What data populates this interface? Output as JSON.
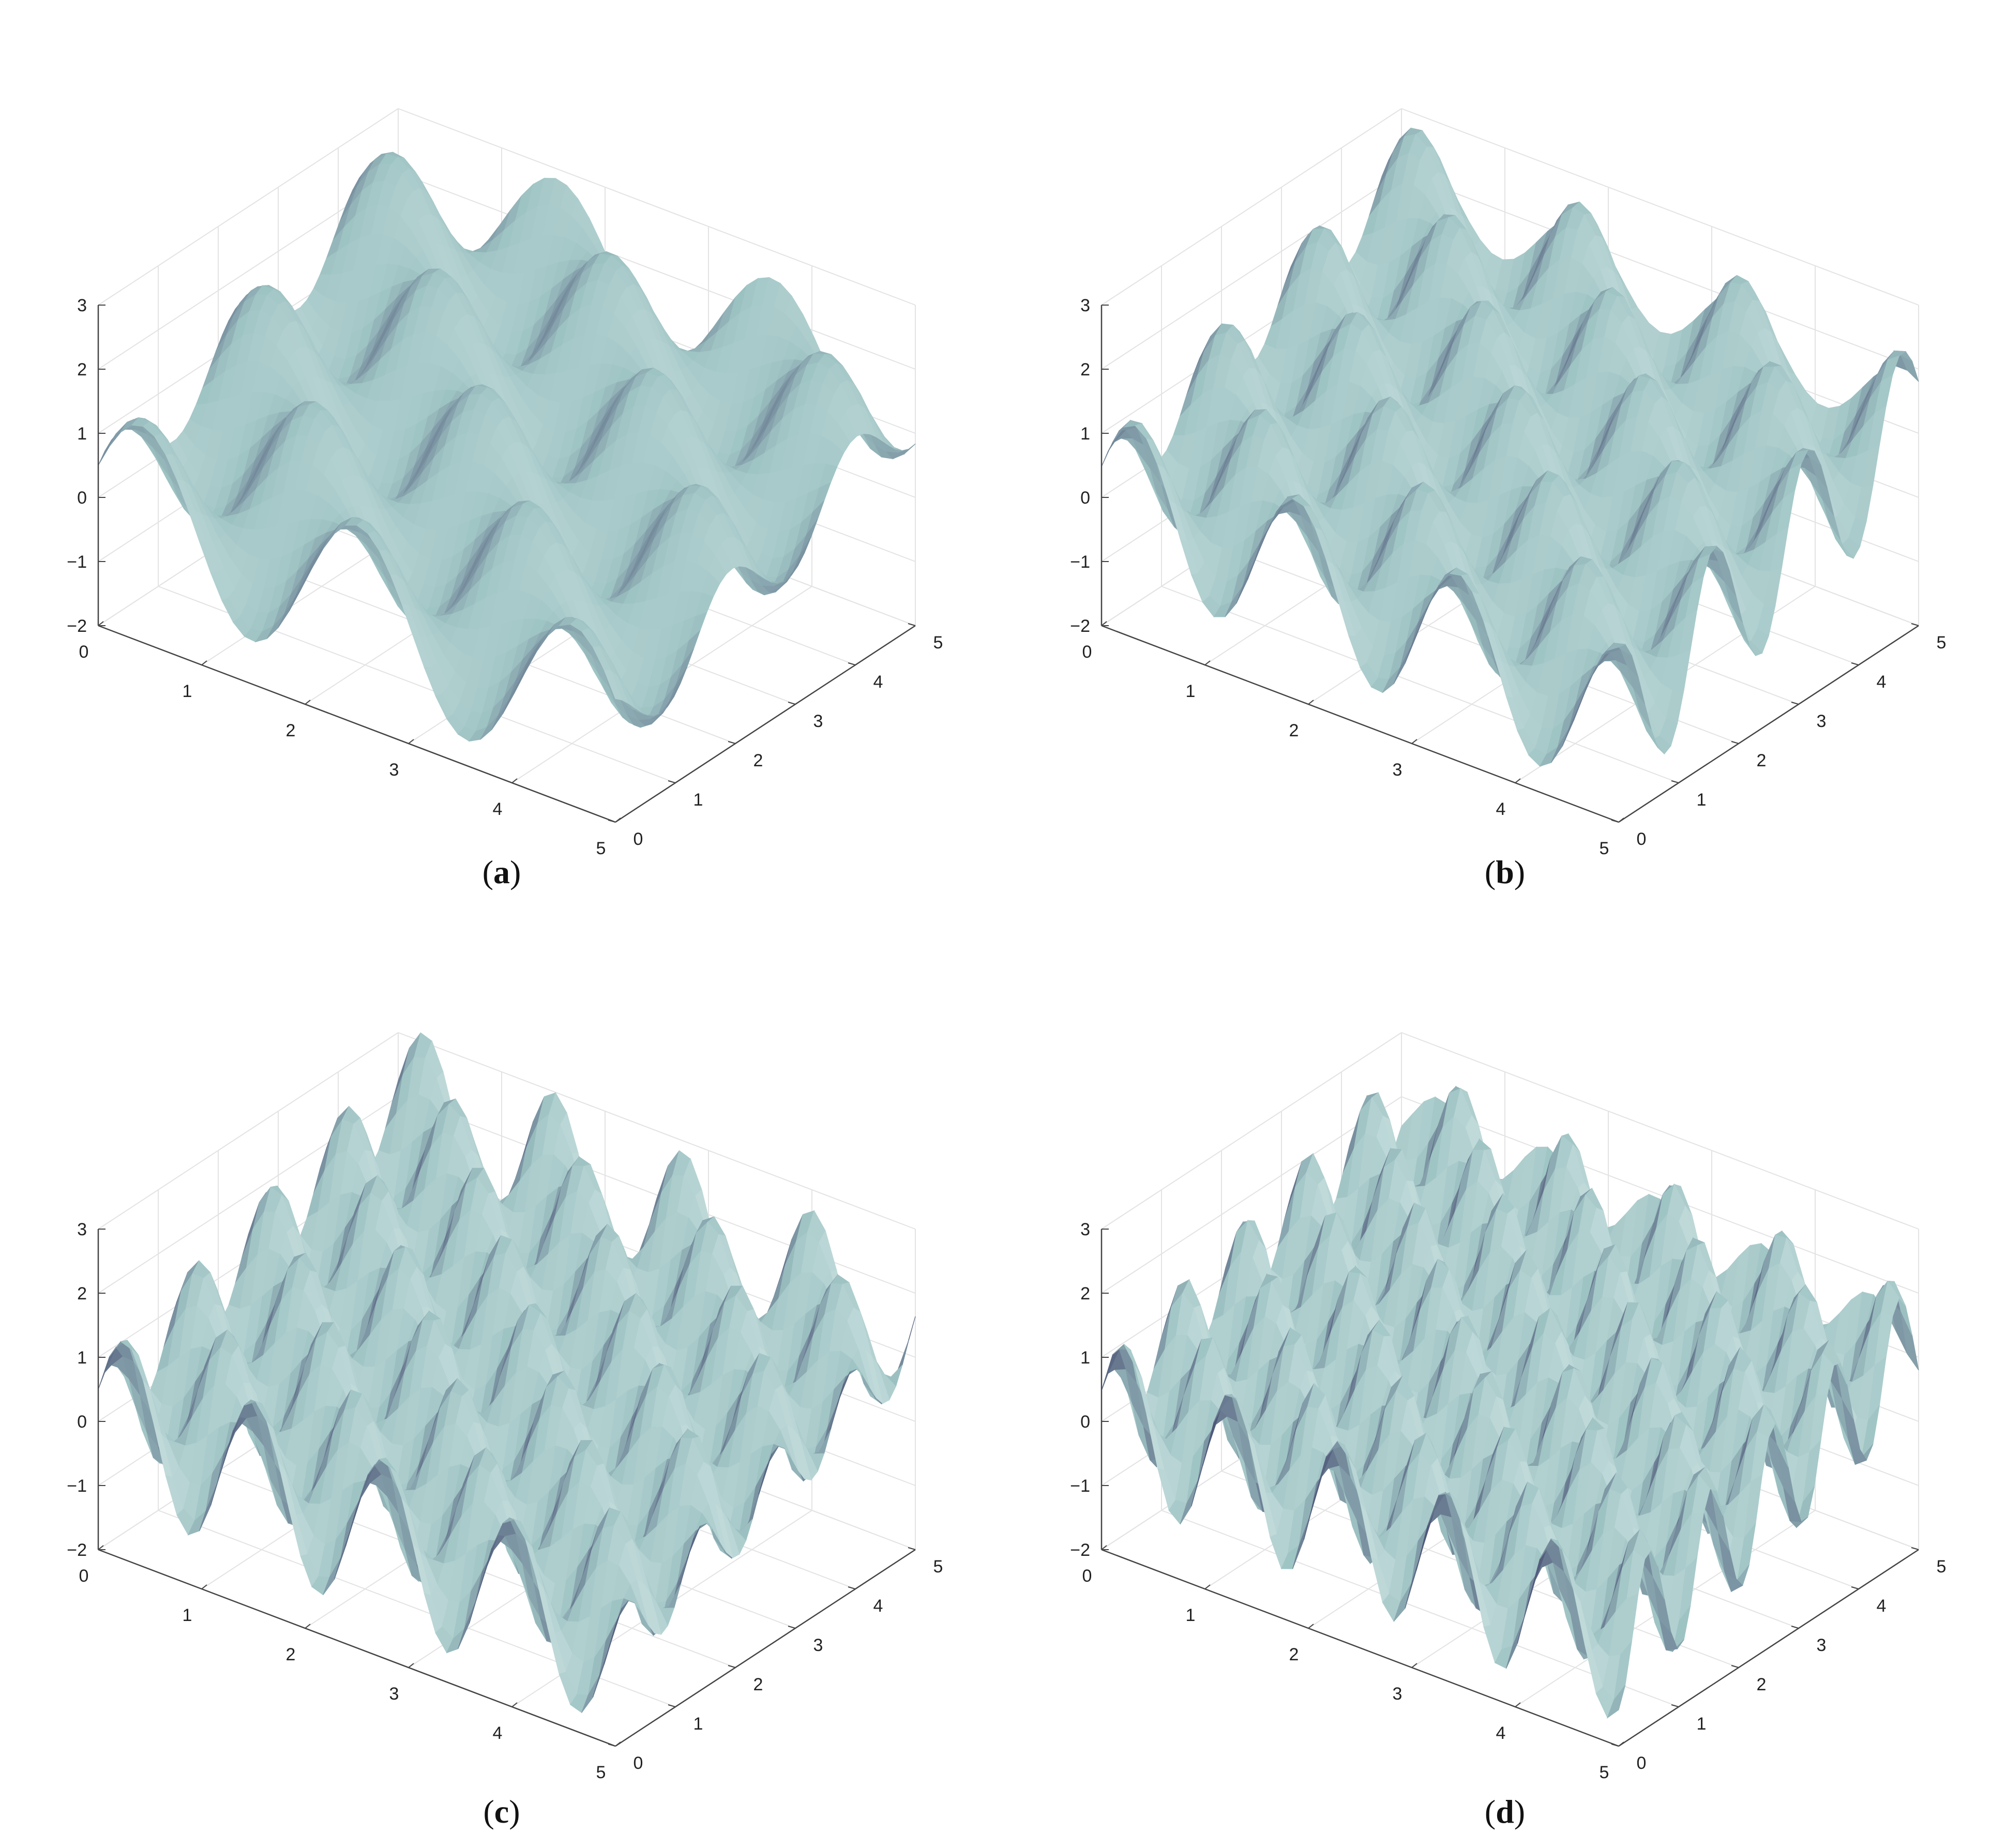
{
  "chart_data": [
    {
      "type": "surface",
      "panel": "a",
      "caption": "a",
      "title": "",
      "xlabel": "",
      "ylabel": "",
      "zlabel": "",
      "xlim": [
        0,
        5
      ],
      "ylim": [
        0,
        5
      ],
      "zlim": [
        -2,
        3
      ],
      "xticks": [
        "0",
        "1",
        "2",
        "3",
        "4",
        "5"
      ],
      "yticks": [
        "0",
        "1",
        "2",
        "3",
        "4",
        "5"
      ],
      "zticks": [
        "−2",
        "−1",
        "0",
        "1",
        "2",
        "3"
      ],
      "grid": true,
      "surface_color": "#9ec3c3",
      "shadow_color": "#4d5577",
      "frequency": 1.2,
      "amplitude": 0.9,
      "tilt": 0.38
    },
    {
      "type": "surface",
      "panel": "b",
      "caption": "b",
      "title": "",
      "xlabel": "",
      "ylabel": "",
      "zlabel": "",
      "xlim": [
        0,
        5
      ],
      "ylim": [
        0,
        5
      ],
      "zlim": [
        -2,
        3
      ],
      "xticks": [
        "0",
        "1",
        "2",
        "3",
        "4",
        "5"
      ],
      "yticks": [
        "0",
        "1",
        "2",
        "3",
        "4",
        "5"
      ],
      "zticks": [
        "−2",
        "−1",
        "0",
        "1",
        "2",
        "3"
      ],
      "grid": true,
      "surface_color": "#9ec3c3",
      "shadow_color": "#4d5577",
      "frequency": 1.6,
      "amplitude": 0.85,
      "tilt": 0.36
    },
    {
      "type": "surface",
      "panel": "c",
      "caption": "c",
      "title": "",
      "xlabel": "",
      "ylabel": "",
      "zlabel": "",
      "xlim": [
        0,
        5
      ],
      "ylim": [
        0,
        5
      ],
      "zlim": [
        -2,
        3
      ],
      "xticks": [
        "0",
        "1",
        "2",
        "3",
        "4",
        "5"
      ],
      "yticks": [
        "0",
        "1",
        "2",
        "3",
        "4",
        "5"
      ],
      "zticks": [
        "−2",
        "−1",
        "0",
        "1",
        "2",
        "3"
      ],
      "grid": true,
      "surface_color": "#9ec3c3",
      "shadow_color": "#4d5577",
      "frequency": 2.0,
      "amplitude": 0.9,
      "tilt": 0.35
    },
    {
      "type": "surface",
      "panel": "d",
      "caption": "d",
      "title": "",
      "xlabel": "",
      "ylabel": "",
      "zlabel": "",
      "xlim": [
        0,
        5
      ],
      "ylim": [
        0,
        5
      ],
      "zlim": [
        -2,
        3
      ],
      "xticks": [
        "0",
        "1",
        "2",
        "3",
        "4",
        "5"
      ],
      "yticks": [
        "0",
        "1",
        "2",
        "3",
        "4",
        "5"
      ],
      "zticks": [
        "−2",
        "−1",
        "0",
        "1",
        "2",
        "3"
      ],
      "grid": true,
      "surface_color": "#9ec3c3",
      "shadow_color": "#4d5577",
      "frequency": 2.4,
      "amplitude": 0.85,
      "tilt": 0.33
    }
  ]
}
